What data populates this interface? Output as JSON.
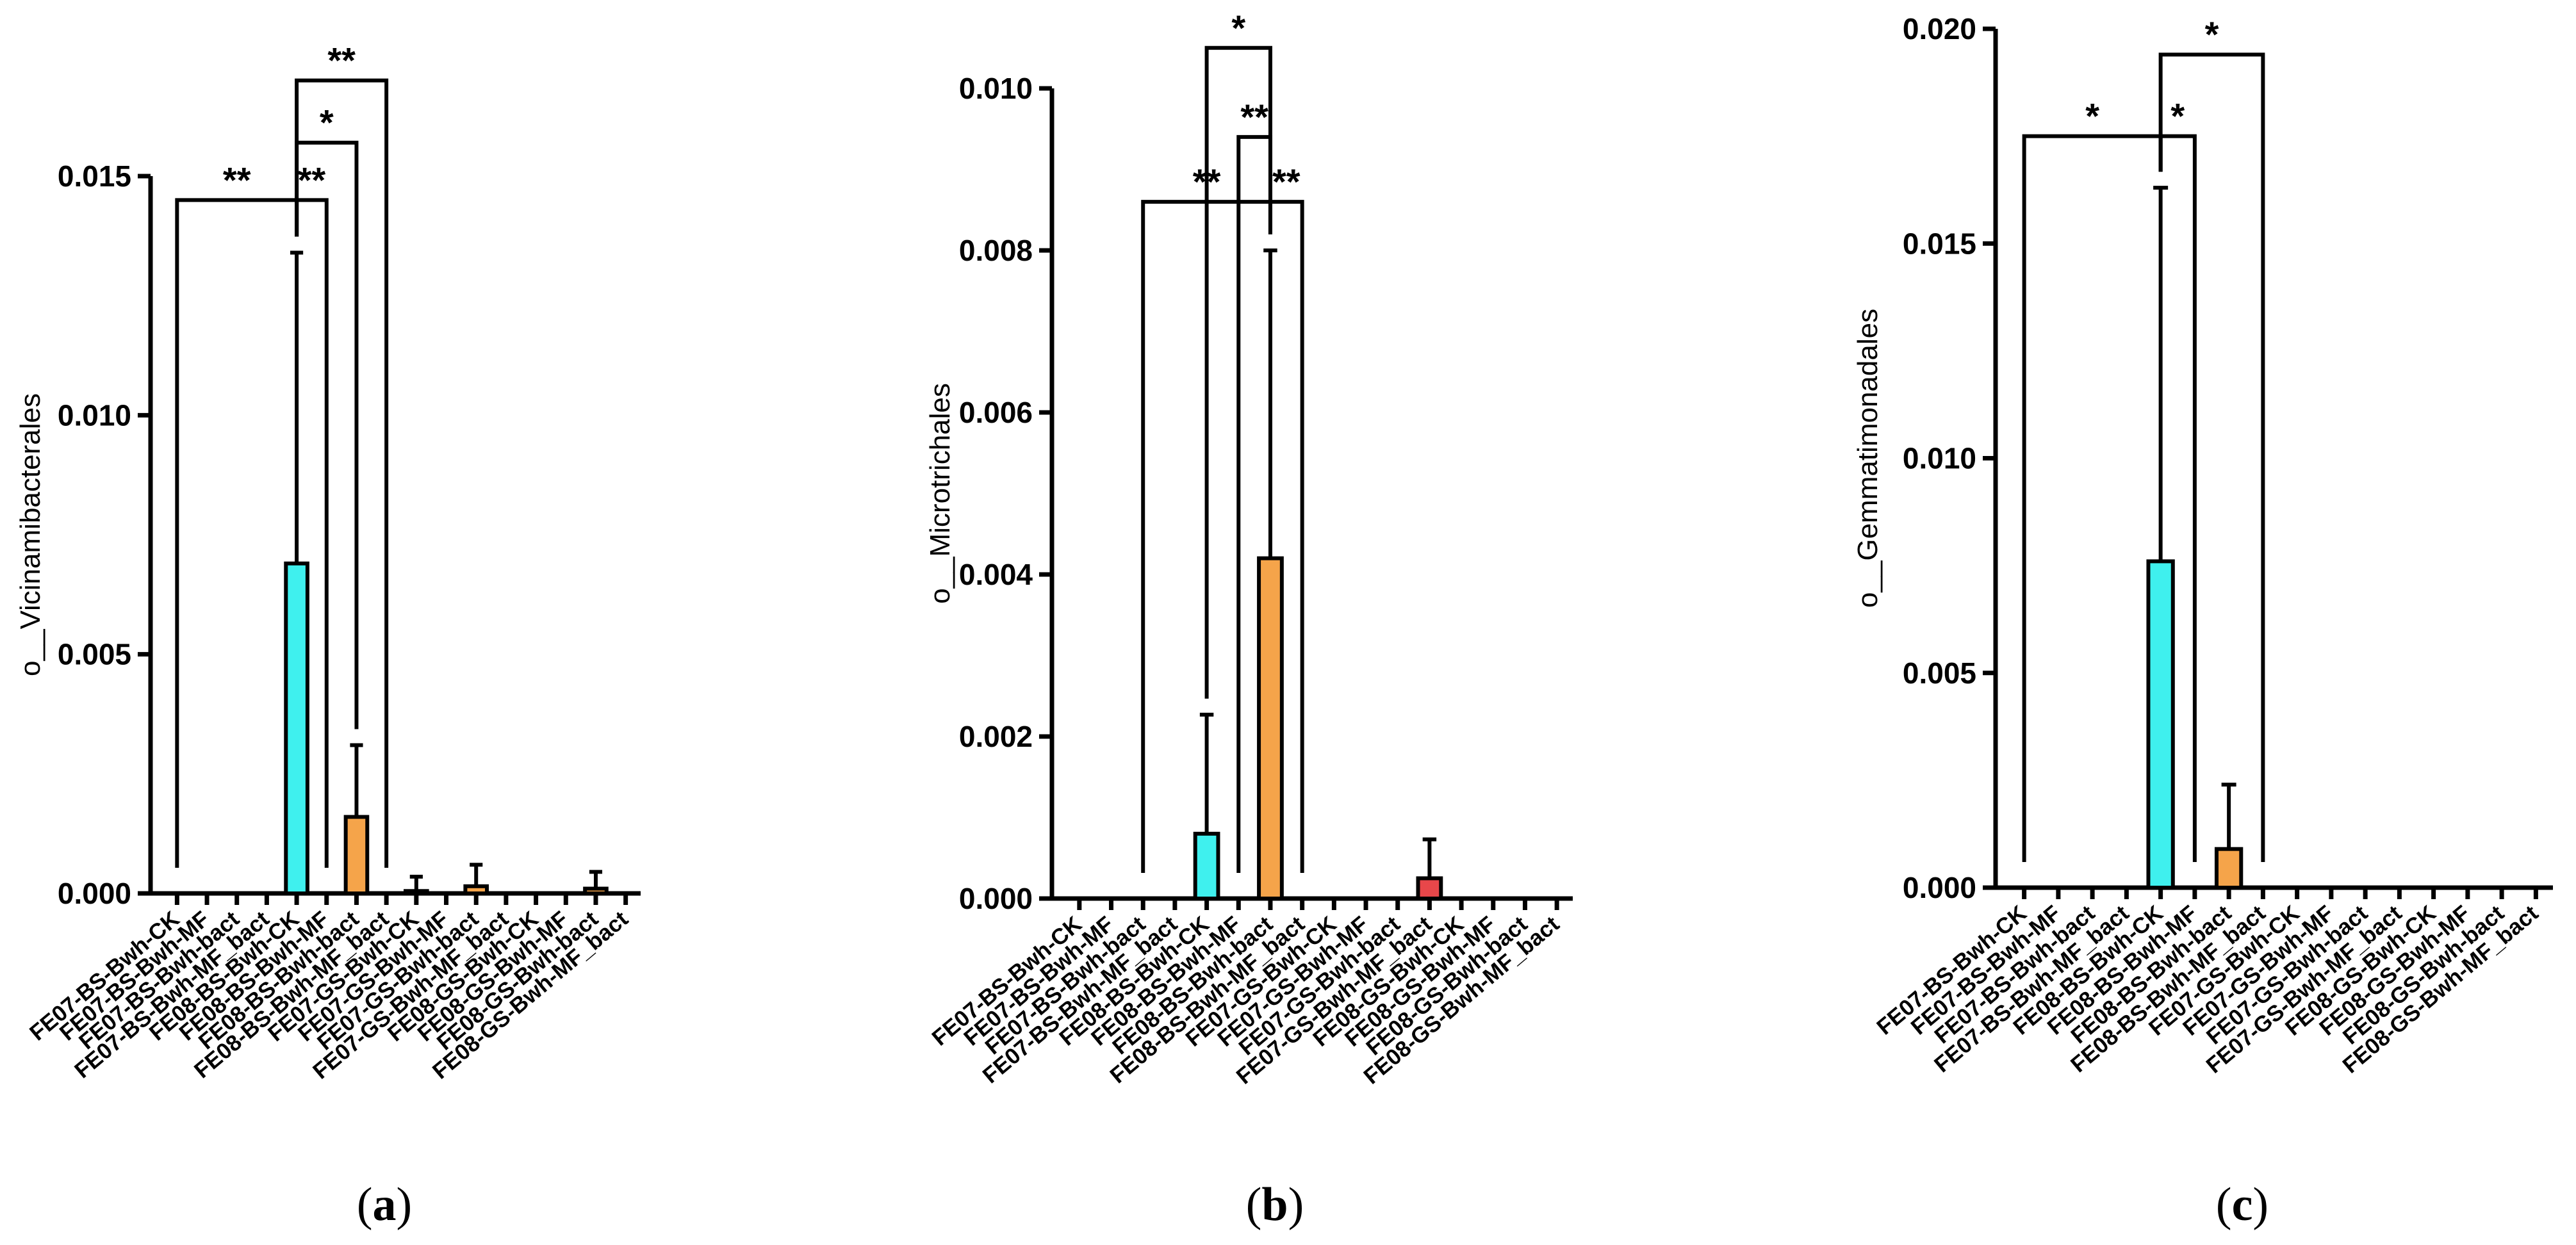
{
  "colors": {
    "cyan": "#3ff0ee",
    "orange": "#f5a44a",
    "red": "#e8474a",
    "axis": "#000000"
  },
  "chart_data": [
    {
      "type": "bar",
      "panel_label": "a",
      "ylabel": "o__Vicinamibacterales",
      "ylim": [
        0,
        0.015
      ],
      "yticks": [
        "0.000",
        "0.005",
        "0.010",
        "0.015"
      ],
      "ytick_values": [
        0,
        0.005,
        0.01,
        0.015
      ],
      "categories": [
        "FE07-BS-Bwh-CK",
        "FE07-BS-Bwh-MF",
        "FE07-BS-Bwh-bact",
        "FE07-BS-Bwh-MF_bact",
        "FE08-BS-Bwh-CK",
        "FE08-BS-Bwh-MF",
        "FE08-BS-Bwh-bact",
        "FE08-BS-Bwh-MF_bact",
        "FE07-GS-Bwh-CK",
        "FE07-GS-Bwh-MF",
        "FE07-GS-Bwh-bact",
        "FE07-GS-Bwh-MF_bact",
        "FE08-GS-Bwh-CK",
        "FE08-GS-Bwh-MF",
        "FE08-GS-Bwh-bact",
        "FE08-GS-Bwh-MF_bact"
      ],
      "values": [
        0,
        0,
        0,
        0,
        0.0069,
        0,
        0.0016,
        0,
        5e-05,
        0,
        0.00015,
        0,
        0,
        0,
        0.0001,
        0
      ],
      "errors": [
        0,
        0,
        0,
        0,
        0.0065,
        0,
        0.0015,
        0,
        0.0003,
        0,
        0.00045,
        0,
        0,
        0,
        0.00035,
        0
      ],
      "colors": [
        "#3ff0ee",
        "#3ff0ee",
        "#3ff0ee",
        "#3ff0ee",
        "#3ff0ee",
        "#3ff0ee",
        "#f5a44a",
        "#3ff0ee",
        "#f5a44a",
        "#3ff0ee",
        "#f5a44a",
        "#3ff0ee",
        "#3ff0ee",
        "#3ff0ee",
        "#f5a44a",
        "#3ff0ee"
      ],
      "brackets": [
        {
          "from": 0,
          "to": 4,
          "level": 0.0145,
          "text": "**"
        },
        {
          "from": 4,
          "to": 5,
          "level": 0.0145,
          "text": "**"
        },
        {
          "from": 4,
          "to": 6,
          "level": 0.0157,
          "text": "*"
        },
        {
          "from": 4,
          "to": 7,
          "level": 0.017,
          "text": "**"
        }
      ]
    },
    {
      "type": "bar",
      "panel_label": "b",
      "ylabel": "o__Microtrichales",
      "ylim": [
        0,
        0.01
      ],
      "yticks": [
        "0.000",
        "0.002",
        "0.004",
        "0.006",
        "0.008",
        "0.010"
      ],
      "ytick_values": [
        0,
        0.002,
        0.004,
        0.006,
        0.008,
        0.01
      ],
      "categories": [
        "FE07-BS-Bwh-CK",
        "FE07-BS-Bwh-MF",
        "FE07-BS-Bwh-bact",
        "FE07-BS-Bwh-MF_bact",
        "FE08-BS-Bwh-CK",
        "FE08-BS-Bwh-MF",
        "FE08-BS-Bwh-bact",
        "FE08-BS-Bwh-MF_bact",
        "FE07-GS-Bwh-CK",
        "FE07-GS-Bwh-MF",
        "FE07-GS-Bwh-bact",
        "FE07-GS-Bwh-MF_bact",
        "FE08-GS-Bwh-CK",
        "FE08-GS-Bwh-MF",
        "FE08-GS-Bwh-bact",
        "FE08-GS-Bwh-MF_bact"
      ],
      "values": [
        0,
        0,
        0,
        0,
        0.0008,
        0,
        0.0042,
        0,
        0,
        0,
        0,
        0.00025,
        0,
        0,
        0,
        0
      ],
      "errors": [
        0,
        0,
        0,
        0,
        0.00147,
        0,
        0.0038,
        0,
        0,
        0,
        0,
        0.00048,
        0,
        0,
        0,
        0
      ],
      "colors": [
        "#3ff0ee",
        "#3ff0ee",
        "#3ff0ee",
        "#3ff0ee",
        "#3ff0ee",
        "#3ff0ee",
        "#f5a44a",
        "#3ff0ee",
        "#3ff0ee",
        "#3ff0ee",
        "#3ff0ee",
        "#e8474a",
        "#3ff0ee",
        "#3ff0ee",
        "#3ff0ee",
        "#3ff0ee"
      ],
      "brackets": [
        {
          "from": 2,
          "to": 6,
          "level": 0.0086,
          "text": "**"
        },
        {
          "from": 6,
          "to": 7,
          "level": 0.0086,
          "text": "**"
        },
        {
          "from": 5,
          "to": 6,
          "level": 0.0094,
          "text": "**"
        },
        {
          "from": 4,
          "to": 6,
          "level": 0.0105,
          "text": "*"
        }
      ]
    },
    {
      "type": "bar",
      "panel_label": "c",
      "ylabel": "o__Gemmatimonadales",
      "ylim": [
        0,
        0.02
      ],
      "yticks": [
        "0.000",
        "0.005",
        "0.010",
        "0.015",
        "0.020"
      ],
      "ytick_values": [
        0,
        0.005,
        0.01,
        0.015,
        0.02
      ],
      "categories": [
        "FE07-BS-Bwh-CK",
        "FE07-BS-Bwh-MF",
        "FE07-BS-Bwh-bact",
        "FE07-BS-Bwh-MF_bact",
        "FE08-BS-Bwh-CK",
        "FE08-BS-Bwh-MF",
        "FE08-BS-Bwh-bact",
        "FE08-BS-Bwh-MF_bact",
        "FE07-GS-Bwh-CK",
        "FE07-GS-Bwh-MF",
        "FE07-GS-Bwh-bact",
        "FE07-GS-Bwh-MF_bact",
        "FE08-GS-Bwh-CK",
        "FE08-GS-Bwh-MF",
        "FE08-GS-Bwh-bact",
        "FE08-GS-Bwh-MF_bact"
      ],
      "values": [
        0,
        0,
        0,
        0,
        0.0076,
        0,
        0.0009,
        0,
        0,
        0,
        0,
        0,
        0,
        0,
        0,
        0
      ],
      "errors": [
        0,
        0,
        0,
        0,
        0.0087,
        0,
        0.0015,
        0,
        0,
        0,
        0,
        0,
        0,
        0,
        0,
        0
      ],
      "colors": [
        "#3ff0ee",
        "#3ff0ee",
        "#3ff0ee",
        "#3ff0ee",
        "#3ff0ee",
        "#3ff0ee",
        "#f5a44a",
        "#3ff0ee",
        "#3ff0ee",
        "#3ff0ee",
        "#3ff0ee",
        "#3ff0ee",
        "#3ff0ee",
        "#3ff0ee",
        "#3ff0ee",
        "#3ff0ee"
      ],
      "brackets": [
        {
          "from": 0,
          "to": 4,
          "level": 0.0175,
          "text": "*"
        },
        {
          "from": 4,
          "to": 5,
          "level": 0.0175,
          "text": "*"
        },
        {
          "from": 4,
          "to": 7,
          "level": 0.0194,
          "text": "*"
        }
      ]
    }
  ]
}
